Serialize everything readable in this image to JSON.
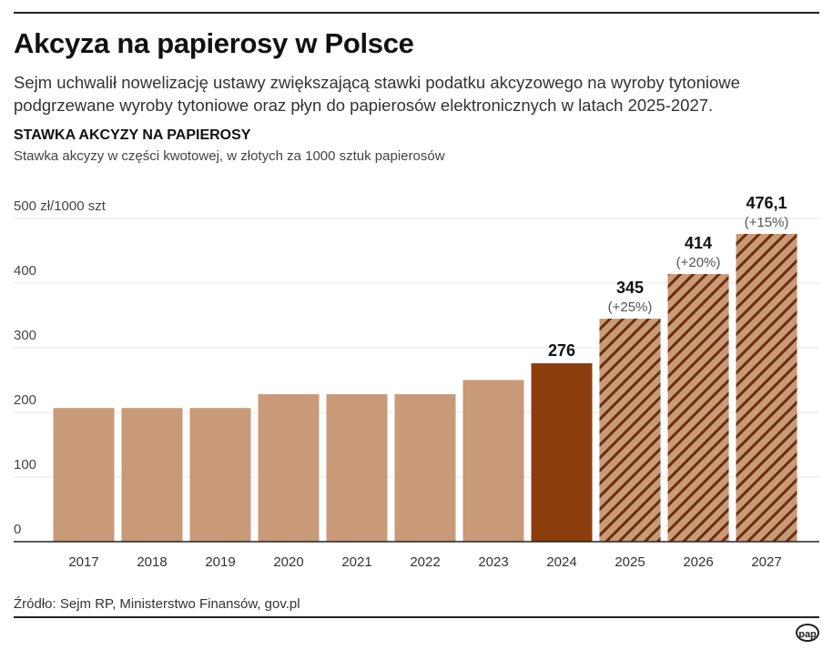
{
  "title": "Akcyza na papierosy w Polsce",
  "subtitle": "Sejm uchwalił nowelizację ustawy zwiększającą stawki podatku akcyzowego na wyroby tytoniowe podgrzewane wyroby tytoniowe oraz płyn do papierosów elektronicznych w latach 2025-2027.",
  "source": "Źródło: Sejm RP, Ministerstwo Finansów, gov.pl",
  "logo": "pap",
  "chart_data": {
    "type": "bar",
    "title": "STAWKA AKCYZY NA PAPIEROSY",
    "subtitle": "Stawka akcyzy w części kwotowej, w złotych za 1000 sztuk papierosów",
    "ylabel": "",
    "y_unit_label": "500 zł/1000 szt",
    "ylim": [
      0,
      500
    ],
    "yticks": [
      "0",
      "100",
      "200",
      "300",
      "400"
    ],
    "grid": true,
    "categories": [
      "2017",
      "2018",
      "2019",
      "2020",
      "2021",
      "2022",
      "2023",
      "2024",
      "2025",
      "2026",
      "2027"
    ],
    "values": [
      206.76,
      206.76,
      206.76,
      228.1,
      228.1,
      228.1,
      250.14,
      276,
      345,
      414,
      476.1
    ],
    "data_labels": [
      "",
      "",
      "",
      "",
      "",
      "",
      "",
      "276",
      "345",
      "414",
      "476,1"
    ],
    "change_labels": [
      "",
      "",
      "",
      "",
      "",
      "",
      "",
      "",
      "(+25%)",
      "(+20%)",
      "(+15%)"
    ],
    "styles": [
      "past",
      "past",
      "past",
      "past",
      "past",
      "past",
      "past",
      "current",
      "planned",
      "planned",
      "planned"
    ],
    "colors": {
      "past": "#c99a78",
      "current": "#8b3d0c",
      "planned_fill": "#c99a78",
      "planned_hatch": "#6b2e0a"
    }
  }
}
